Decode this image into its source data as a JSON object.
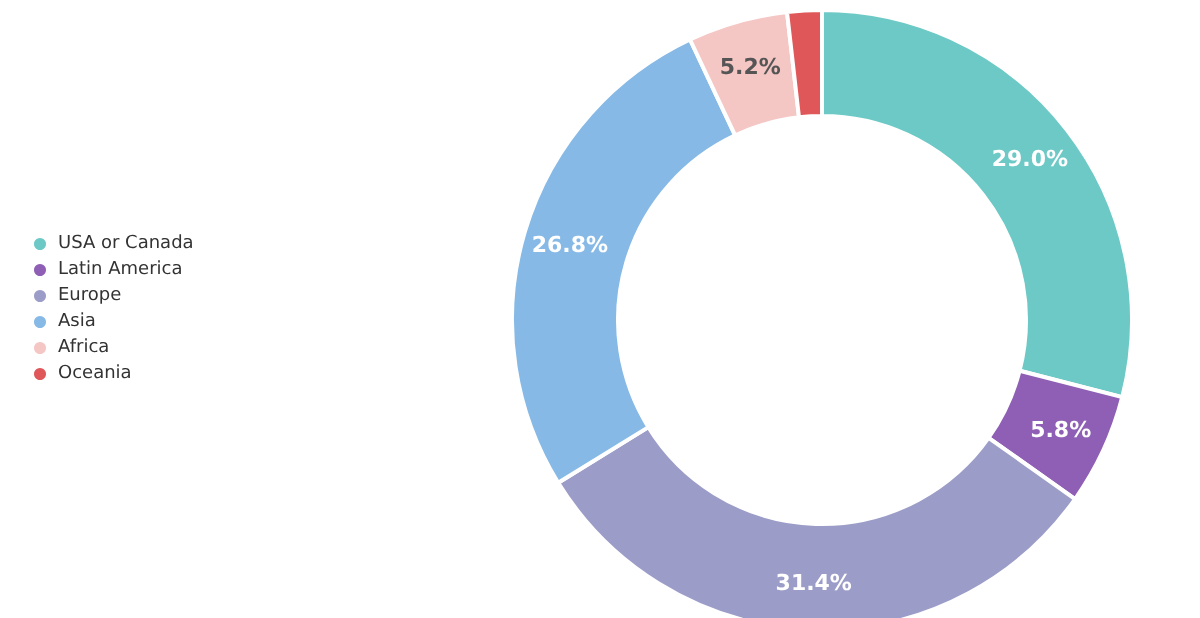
{
  "chart_data": {
    "type": "donut",
    "categories": [
      "USA or Canada",
      "Latin America",
      "Europe",
      "Asia",
      "Africa",
      "Oceania"
    ],
    "values": [
      29.0,
      5.8,
      31.4,
      26.8,
      5.2,
      1.8
    ],
    "value_labels": [
      "29.0%",
      "5.8%",
      "31.4%",
      "26.8%",
      "5.2%",
      null
    ],
    "colors": [
      "#6cc9c6",
      "#8e5fb5",
      "#9b9dc8",
      "#86b9e6",
      "#f4c6c4",
      "#e05759"
    ],
    "legend": "left"
  }
}
